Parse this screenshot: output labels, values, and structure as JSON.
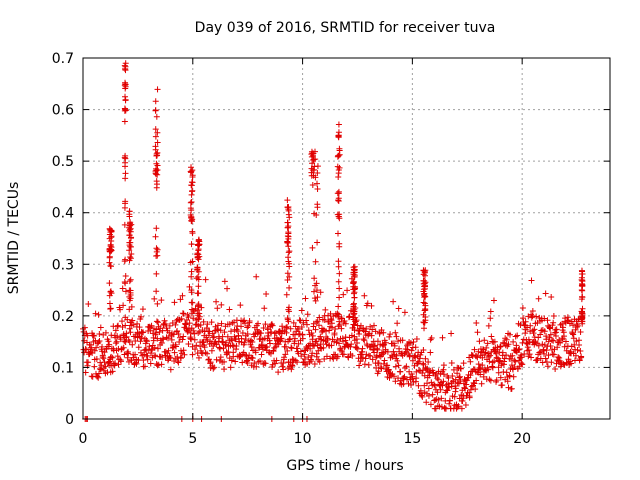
{
  "chart_data": {
    "type": "scatter",
    "title": "Day 039 of 2016, SRMTID for receiver tuva",
    "xlabel": "GPS time / hours",
    "ylabel": "SRMTID / TECUs",
    "xlim": [
      0,
      24
    ],
    "ylim": [
      0,
      0.7
    ],
    "xticks": [
      0,
      5,
      10,
      15,
      20
    ],
    "xtick_labels": [
      "0",
      "5",
      "10",
      "15",
      "20"
    ],
    "yticks": [
      0,
      0.1,
      0.2,
      0.3,
      0.4,
      0.5,
      0.6,
      0.7
    ],
    "ytick_labels": [
      "0",
      "0.1",
      "0.2",
      "0.3",
      "0.4",
      "0.5",
      "0.6",
      "0.7"
    ],
    "grid": true,
    "marker": "+",
    "series": [
      {
        "name": "SRMTID",
        "color": "#e00000",
        "baseline": {
          "x": [
            0.0,
            0.5,
            1.0,
            1.5,
            2.0,
            2.5,
            3.0,
            3.5,
            4.0,
            4.5,
            5.0,
            5.5,
            6.0,
            6.5,
            7.0,
            7.5,
            8.0,
            8.5,
            9.0,
            9.5,
            10.0,
            10.5,
            11.0,
            11.5,
            12.0,
            12.5,
            13.0,
            13.5,
            14.0,
            14.5,
            15.0,
            15.5,
            16.0,
            16.5,
            17.0,
            17.5,
            18.0,
            18.5,
            19.0,
            19.5,
            20.0,
            20.5,
            21.0,
            21.5,
            22.0,
            22.5,
            22.7
          ],
          "y": [
            0.14,
            0.12,
            0.13,
            0.14,
            0.15,
            0.15,
            0.14,
            0.15,
            0.14,
            0.16,
            0.17,
            0.15,
            0.14,
            0.14,
            0.15,
            0.15,
            0.14,
            0.15,
            0.13,
            0.14,
            0.15,
            0.15,
            0.16,
            0.16,
            0.16,
            0.15,
            0.14,
            0.13,
            0.12,
            0.11,
            0.11,
            0.08,
            0.06,
            0.05,
            0.05,
            0.07,
            0.11,
            0.12,
            0.11,
            0.1,
            0.15,
            0.16,
            0.15,
            0.14,
            0.15,
            0.15,
            0.16
          ]
        },
        "spikes": [
          {
            "x": [
              1.2,
              1.3
            ],
            "y": [
              0.3,
              0.37
            ]
          },
          {
            "x": [
              1.9,
              1.95
            ],
            "y": [
              0.45,
              0.69
            ]
          },
          {
            "x": [
              2.1,
              2.2
            ],
            "y": [
              0.3,
              0.41
            ]
          },
          {
            "x": [
              3.3,
              3.4
            ],
            "y": [
              0.4,
              0.64
            ]
          },
          {
            "x": [
              4.9,
              5.0
            ],
            "y": [
              0.35,
              0.49
            ]
          },
          {
            "x": [
              5.2,
              5.3
            ],
            "y": [
              0.25,
              0.35
            ]
          },
          {
            "x": [
              9.3,
              9.4
            ],
            "y": [
              0.3,
              0.43
            ]
          },
          {
            "x": [
              10.4,
              10.7
            ],
            "y": [
              0.38,
              0.53
            ]
          },
          {
            "x": [
              11.6,
              11.7
            ],
            "y": [
              0.38,
              0.58
            ]
          },
          {
            "x": [
              12.3,
              12.4
            ],
            "y": [
              0.22,
              0.3
            ]
          },
          {
            "x": [
              15.5,
              15.6
            ],
            "y": [
              0.22,
              0.29
            ]
          },
          {
            "x": [
              22.7,
              22.75
            ],
            "y": [
              0.2,
              0.29
            ]
          }
        ],
        "zero_points_x": [
          0.1,
          0.15,
          0.2,
          4.5,
          5.0,
          5.4,
          6.3,
          8.6,
          9.6,
          10.0,
          10.2
        ]
      }
    ]
  }
}
